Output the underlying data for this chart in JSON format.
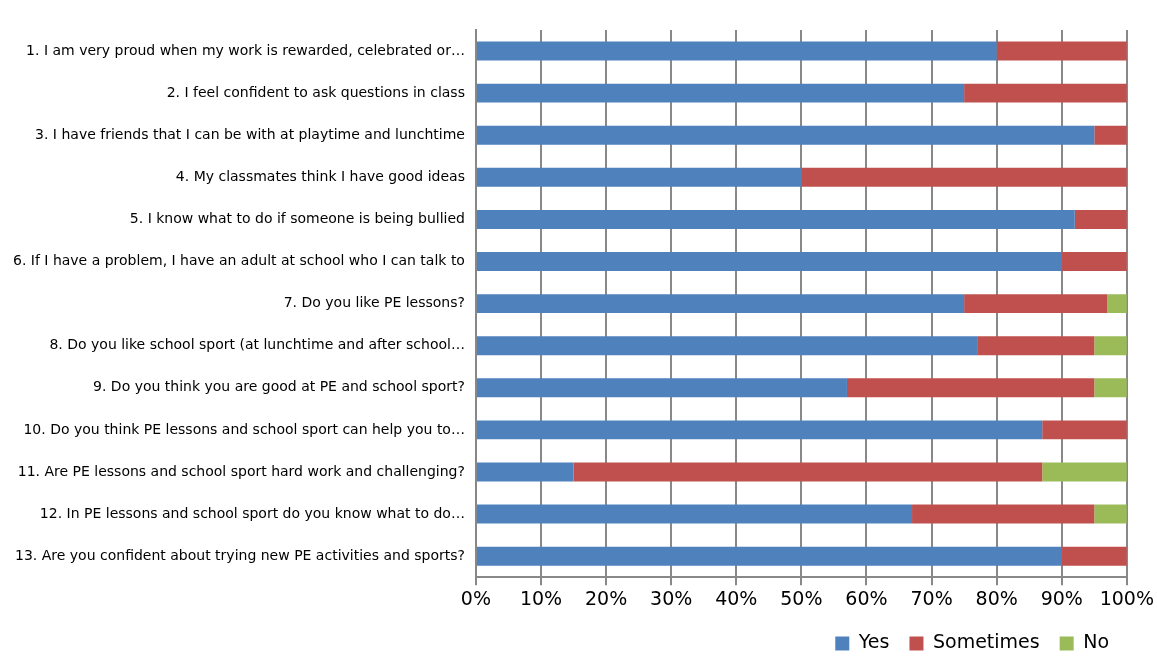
{
  "chart_data": {
    "type": "bar",
    "orientation": "horizontal",
    "stacked": true,
    "categories": [
      "1. I am very proud when my work is rewarded, celebrated or…",
      "2. I feel confident to ask questions in class",
      "3. I have friends that I can be with at playtime and lunchtime",
      "4. My classmates think I have good ideas",
      "5. I know what to do if someone is being bullied",
      "6. If I have a problem, I have an adult at school who I can talk to",
      "7. Do you like PE lessons?",
      "8. Do you like school sport (at lunchtime and after school…",
      "9. Do you think you are good at PE and school sport?",
      "10. Do you think PE lessons and school sport can help you to…",
      "11. Are PE lessons and school sport hard work and challenging?",
      "12. In PE lessons and school sport do you know what to do…",
      "13. Are you confident about trying new PE activities and sports?"
    ],
    "series": [
      {
        "name": "Yes",
        "color": "#4f81bd",
        "values": [
          80,
          75,
          95,
          50,
          92,
          90,
          75,
          77,
          57,
          87,
          15,
          67,
          90
        ]
      },
      {
        "name": "Sometimes",
        "color": "#c0504d",
        "values": [
          20,
          25,
          5,
          50,
          8,
          10,
          22,
          18,
          38,
          13,
          72,
          28,
          10
        ]
      },
      {
        "name": "No",
        "color": "#9bbb59",
        "values": [
          0,
          0,
          0,
          0,
          0,
          0,
          3,
          5,
          5,
          0,
          13,
          5,
          0
        ]
      }
    ],
    "xlim": [
      0,
      100
    ],
    "xticks": [
      {
        "value": 0,
        "label": "0%"
      },
      {
        "value": 10,
        "label": "10%"
      },
      {
        "value": 20,
        "label": "20%"
      },
      {
        "value": 30,
        "label": "30%"
      },
      {
        "value": 40,
        "label": "40%"
      },
      {
        "value": 50,
        "label": "50%"
      },
      {
        "value": 60,
        "label": "60%"
      },
      {
        "value": 70,
        "label": "70%"
      },
      {
        "value": 80,
        "label": "80%"
      },
      {
        "value": 90,
        "label": "90%"
      },
      {
        "value": 100,
        "label": "100%"
      }
    ],
    "grid": "x",
    "legend": "bottom"
  }
}
